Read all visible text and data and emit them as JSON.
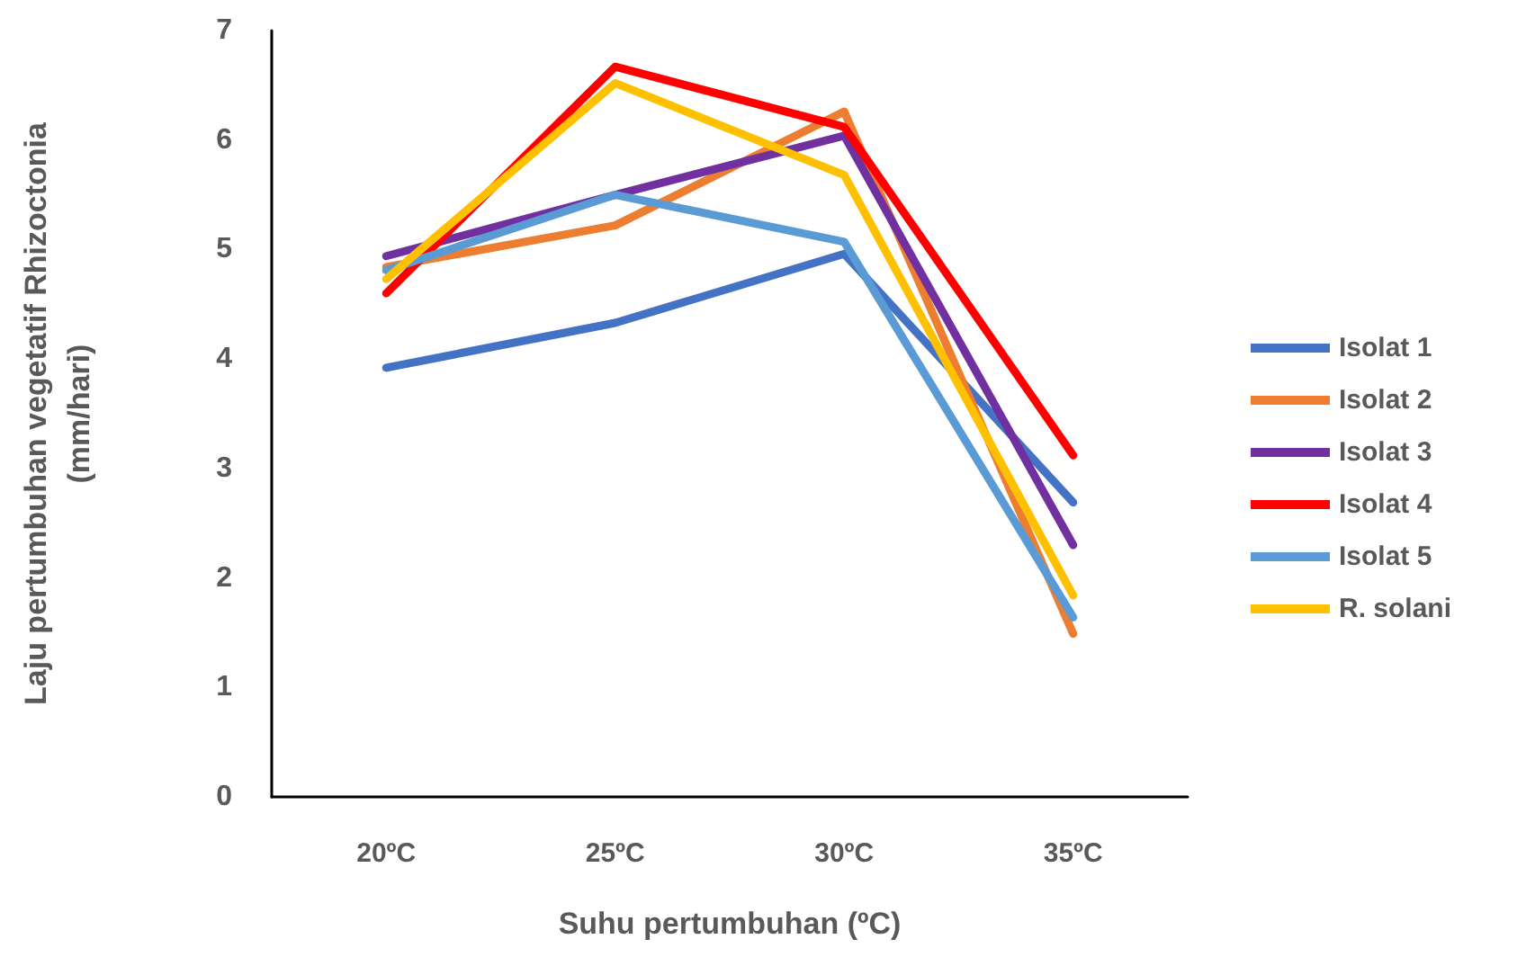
{
  "chart_data": {
    "type": "line",
    "xlabel": "Suhu pertumbuhan (ºC)",
    "ylabel": "Laju pertumbuhan vegetatif Rhizoctonia\n(mm/hari)",
    "categories": [
      "20ºC",
      "25ºC",
      "30ºC",
      "35ºC"
    ],
    "series": [
      {
        "name": "Isolat 1",
        "color": "#4472c4",
        "values": [
          3.92,
          4.33,
          4.96,
          2.69
        ]
      },
      {
        "name": "Isolat 2",
        "color": "#ed7d31",
        "values": [
          4.84,
          5.22,
          6.26,
          1.49
        ]
      },
      {
        "name": "Isolat 3",
        "color": "#7030a0",
        "values": [
          4.94,
          5.5,
          6.04,
          2.3
        ]
      },
      {
        "name": "Isolat 4",
        "color": "#ff0000",
        "values": [
          4.6,
          6.67,
          6.12,
          3.12
        ]
      },
      {
        "name": "Isolat 5",
        "color": "#5b9bd5",
        "values": [
          4.81,
          5.5,
          5.07,
          1.64
        ]
      },
      {
        "name": "R. solani",
        "color": "#ffc000",
        "values": [
          4.73,
          6.52,
          5.68,
          1.84
        ]
      }
    ],
    "ylim": [
      0,
      7
    ],
    "yticks": [
      0,
      1,
      2,
      3,
      4,
      5,
      6,
      7
    ],
    "grid": false,
    "legend": "right",
    "marker": "none",
    "line_style": "solid"
  }
}
